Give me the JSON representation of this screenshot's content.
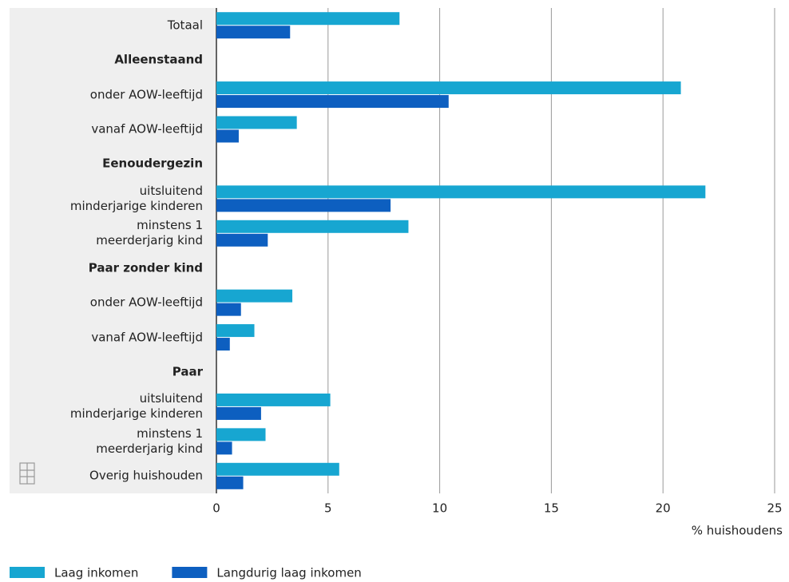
{
  "chart_data": {
    "type": "bar",
    "orientation": "horizontal",
    "categories": [
      "Totaal",
      "Alleenstaand",
      "onder AOW-leeftijd",
      "vanaf AOW-leeftijd",
      "Eenoudergezin",
      "uitsluitend\nminderjarige kinderen",
      "minstens 1\nmeerderjarig kind",
      "Paar zonder kind",
      "onder AOW-leeftijd",
      "vanaf AOW-leeftijd",
      "Paar",
      "uitsluitend\nminderjarige kinderen",
      "minstens 1\nmeerderjarig kind",
      "Overig huishouden"
    ],
    "series": [
      {
        "name": "Laag inkomen",
        "color": "#17a6d1",
        "values": [
          8.2,
          null,
          20.8,
          3.6,
          null,
          21.9,
          8.6,
          null,
          3.4,
          1.7,
          null,
          5.1,
          2.2,
          5.5
        ]
      },
      {
        "name": "Langdurig laag inkomen",
        "color": "#0d5fc0",
        "values": [
          3.3,
          null,
          10.4,
          1.0,
          null,
          7.8,
          2.3,
          null,
          1.1,
          0.6,
          null,
          2.0,
          0.7,
          1.2
        ]
      }
    ],
    "xlabel": "% huishoudens",
    "xlim": [
      0,
      25
    ],
    "xticks": [
      0,
      5,
      10,
      15,
      20,
      25
    ],
    "grid": true,
    "legend": "bottom-left"
  }
}
